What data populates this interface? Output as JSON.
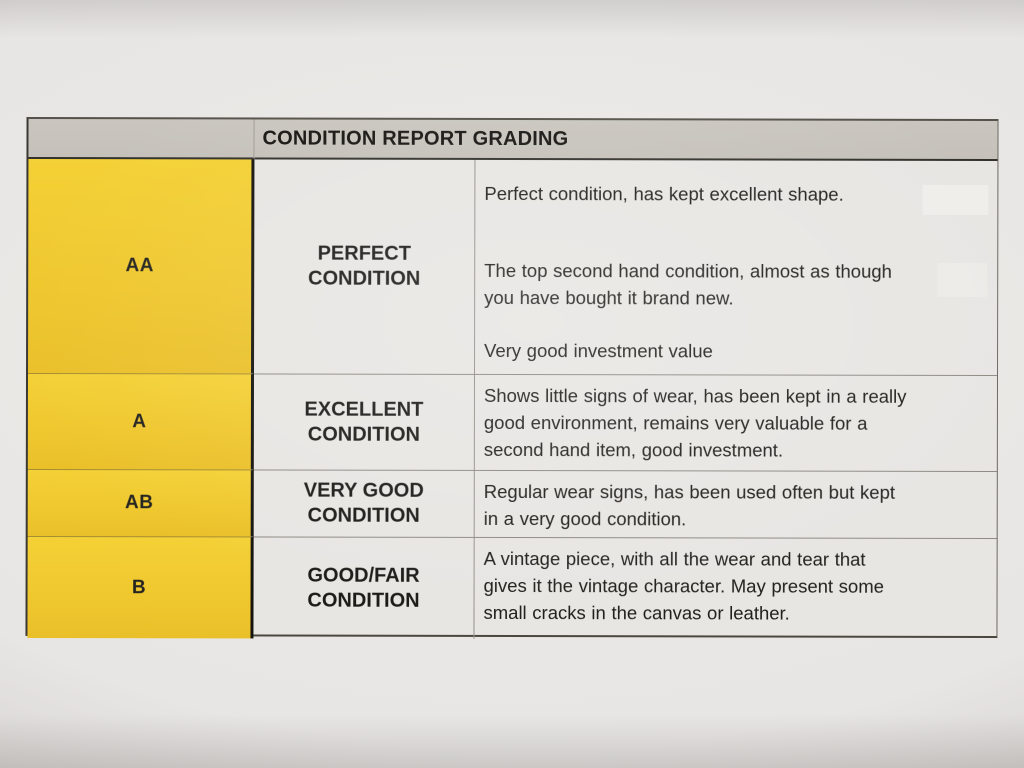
{
  "colors": {
    "grade_column_yellow": "#efc72e",
    "header_bar_gray": "#c5c1ba",
    "paper": "#e8e6e4",
    "ink": "#1f1d1a"
  },
  "table": {
    "header_title": "CONDITION REPORT GRADING",
    "rows": [
      {
        "code": "AA",
        "name": "PERFECT\nCONDITION",
        "description": [
          "Perfect condition, has kept excellent shape.",
          "The top second hand condition, almost as though\nyou have bought it brand new.",
          "Very good investment value"
        ]
      },
      {
        "code": "A",
        "name": "EXCELLENT\nCONDITION",
        "description": [
          "Shows little signs of wear, has been kept in a really\ngood environment, remains very valuable for a\nsecond hand item, good investment."
        ]
      },
      {
        "code": "AB",
        "name": "VERY GOOD\nCONDITION",
        "description": [
          "Regular wear signs, has been used often but kept\nin a very good condition."
        ]
      },
      {
        "code": "B",
        "name": "GOOD/FAIR\nCONDITION",
        "description": [
          "A vintage piece, with all the wear and tear that\ngives it the vintage character. May present some\nsmall cracks in the canvas or leather."
        ]
      }
    ]
  }
}
